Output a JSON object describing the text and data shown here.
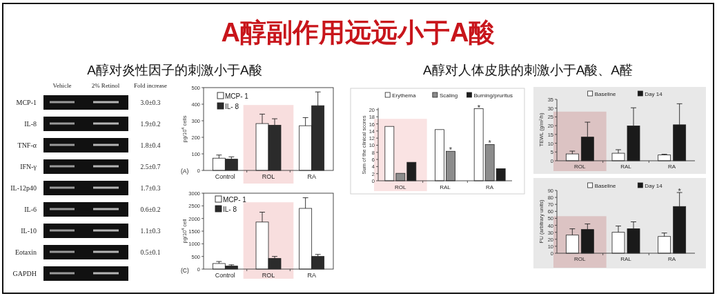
{
  "chart_data": [
    {
      "type": "other",
      "title": "A醇副作用远远小于A酸",
      "annotations": [
        "A醇对炎性因子的刺激小于A酸",
        "A醇对人体皮肤的刺激小于A酸、A醛"
      ]
    },
    {
      "type": "other",
      "categories": [
        "Vehicle",
        "2% Retinol",
        "Fold increase"
      ],
      "y_categories": [
        "MCP-1",
        "IL-8",
        "TNF-α",
        "IFN-γ",
        "IL-12p40",
        "IL-6",
        "IL-10",
        "Eotaxin",
        "GAPDH"
      ],
      "annotations": [
        "3.0±0.3",
        "1.9±0.2",
        "1.8±0.4",
        "2.5±0.7",
        "1.7±0.3",
        "0.6±0.2",
        "1.1±0.3",
        "0.5±0.1"
      ]
    },
    {
      "type": "bar",
      "categories": [
        "Control",
        "ROL",
        "RA"
      ],
      "ylabel": "pg/10$^{4}$ cells",
      "annotations": [
        "(A)"
      ],
      "series": [
        {
          "name": "MCP- 1",
          "color": "#ffffff",
          "values": [
            74,
            283,
            270
          ],
          "errors": [
            [
              74,
              93
            ],
            [
              283,
              340
            ],
            [
              270,
              319
            ]
          ]
        },
        {
          "name": "IL- 8",
          "color": "#2b2b2b",
          "values": [
            68,
            273,
            391
          ],
          "errors": [
            [
              68,
              82
            ],
            [
              273,
              312
            ],
            [
              391,
              474
            ]
          ]
        }
      ],
      "ylim": [
        0,
        500
      ],
      "yticks": [
        0,
        100,
        200,
        300,
        400,
        500
      ],
      "legend": "top left",
      "bands": [
        {
          "axis": "x",
          "from": "ROL",
          "to": "ROL",
          "color": "#f8dede"
        }
      ]
    },
    {
      "type": "bar",
      "categories": [
        "Control",
        "ROL",
        "RA"
      ],
      "ylabel": "pg/10$^{4}$ cell",
      "annotations": [
        "(C)"
      ],
      "series": [
        {
          "name": "MCP- 1",
          "color": "#ffffff",
          "values": [
            220,
            1860,
            2400
          ],
          "errors": [
            [
              220,
              300
            ],
            [
              1860,
              2250
            ],
            [
              2400,
              2820
            ]
          ]
        },
        {
          "name": "IL- 8",
          "color": "#2b2b2b",
          "values": [
            120,
            420,
            500
          ],
          "errors": [
            [
              120,
              170
            ],
            [
              420,
              500
            ],
            [
              500,
              580
            ]
          ]
        }
      ],
      "ylim": [
        0,
        3000
      ],
      "yticks": [
        0,
        500,
        1000,
        1500,
        2000,
        2500,
        3000
      ],
      "legend": "top left",
      "bands": [
        {
          "axis": "x",
          "from": "ROL",
          "to": "ROL",
          "color": "#f8dede"
        }
      ]
    },
    {
      "type": "bar",
      "categories": [
        "ROL",
        "RAL",
        "RA"
      ],
      "ylabel": "Sum of the clinical scores",
      "series": [
        {
          "name": "Erythema",
          "color": "#ffffff",
          "values": [
            15.3,
            14.4,
            20.3
          ]
        },
        {
          "name": "Scaling",
          "color": "#8c8c8c",
          "values": [
            2.1,
            8.3,
            10.2
          ]
        },
        {
          "name": "Burning/pruritus",
          "color": "#1e1e1e",
          "values": [
            5.2,
            null,
            3.4
          ]
        }
      ],
      "ylim": [
        0,
        20.5
      ],
      "yticks": [
        0,
        2,
        4,
        6,
        8,
        10,
        12,
        14,
        16,
        18,
        20
      ],
      "legend": "top",
      "annotations": [
        {
          "text": "*",
          "x": "RAL",
          "y": 8.3
        },
        "*",
        {
          "text": "*",
          "x": "RA",
          "y": 10.2
        }
      ],
      "bands": [
        {
          "axis": "x",
          "from": "ROL",
          "to": "ROL",
          "color": "#fae3e3"
        }
      ]
    },
    {
      "type": "bar",
      "categories": [
        "ROL",
        "RAL",
        "RA"
      ],
      "ylabel": "TEWL (g/m²/h)",
      "series": [
        {
          "name": "Baseline",
          "color": "#ffffff",
          "values": [
            3.9,
            4.3,
            3.3
          ],
          "errors": [
            [
              3.9,
              5.5
            ],
            [
              4.3,
              6.3
            ],
            [
              3.3,
              3.7
            ]
          ]
        },
        {
          "name": "Day 14",
          "color": "#1a1a1a",
          "values": [
            13.5,
            19.9,
            20.5
          ],
          "errors": [
            [
              13.5,
              22
            ],
            [
              19.9,
              30.2
            ],
            [
              20.5,
              32.5
            ]
          ]
        }
      ],
      "ylim": [
        0,
        35
      ],
      "yticks": [
        0,
        5,
        10,
        15,
        20,
        25,
        30,
        35
      ],
      "legend": "top",
      "bands": [
        {
          "axis": "x",
          "from": "ROL",
          "to": "ROL",
          "color": "#dcc3c3"
        }
      ]
    },
    {
      "type": "bar",
      "categories": [
        "ROL",
        "RAL",
        "RA"
      ],
      "ylabel": "PU (arbitrary units)",
      "series": [
        {
          "name": "Baseline",
          "color": "#ffffff",
          "values": [
            26,
            30,
            24
          ],
          "errors": [
            [
              26,
              35
            ],
            [
              30,
              39
            ],
            [
              24,
              29
            ]
          ]
        },
        {
          "name": "Day 14",
          "color": "#1a1a1a",
          "values": [
            34,
            35,
            67
          ],
          "errors": [
            [
              34,
              42
            ],
            [
              35,
              45
            ],
            [
              67,
              87
            ]
          ]
        }
      ],
      "ylim": [
        0,
        90
      ],
      "yticks": [
        0,
        10,
        20,
        30,
        40,
        50,
        60,
        70,
        80,
        90
      ],
      "legend": "top",
      "annotations": [
        {
          "text": "*",
          "x": "RA",
          "y": 67
        }
      ],
      "bands": [
        {
          "axis": "x",
          "from": "ROL",
          "to": "ROL",
          "color": "#dcc3c3"
        }
      ]
    }
  ]
}
